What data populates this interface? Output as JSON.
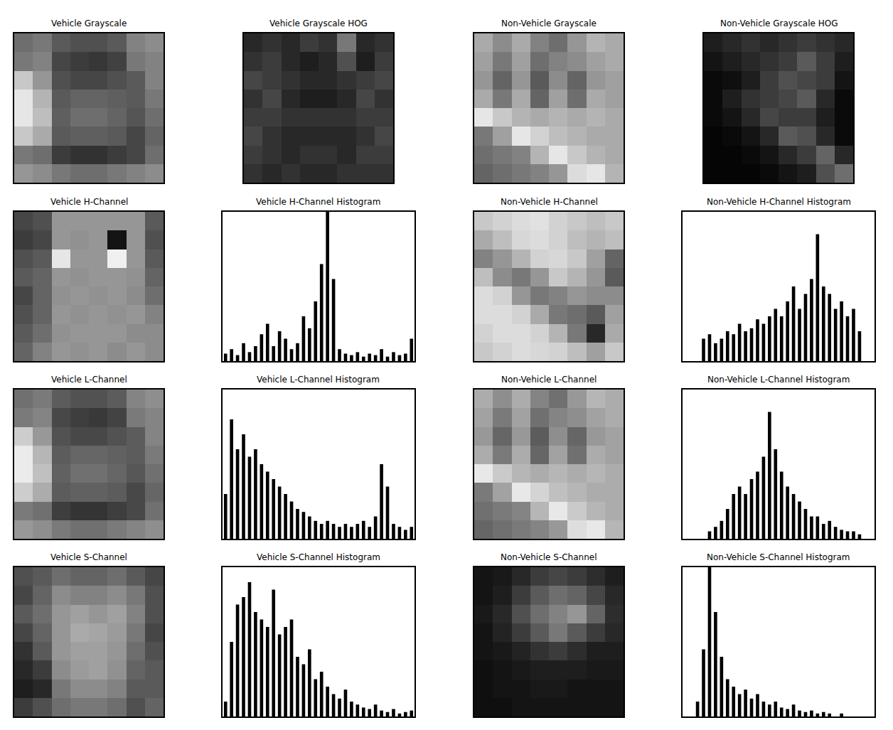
{
  "chart_data": [
    {
      "type": "heatmap",
      "title": "Vehicle Grayscale",
      "zlim": [
        0,
        255
      ],
      "tick_labels": false,
      "z": [
        [
          110,
          120,
          90,
          80,
          80,
          90,
          130,
          140
        ],
        [
          120,
          130,
          70,
          60,
          55,
          65,
          120,
          130
        ],
        [
          200,
          150,
          80,
          70,
          70,
          80,
          90,
          130
        ],
        [
          230,
          180,
          90,
          100,
          100,
          95,
          90,
          120
        ],
        [
          230,
          190,
          95,
          110,
          110,
          100,
          85,
          110
        ],
        [
          200,
          170,
          90,
          95,
          95,
          90,
          70,
          100
        ],
        [
          120,
          110,
          60,
          50,
          50,
          60,
          70,
          110
        ],
        [
          150,
          140,
          120,
          110,
          110,
          120,
          130,
          140
        ]
      ]
    },
    {
      "type": "heatmap",
      "title": "Vehicle Grayscale HOG",
      "zlim": [
        0,
        255
      ],
      "tick_labels": false,
      "z": [
        [
          40,
          50,
          40,
          60,
          50,
          120,
          40,
          50
        ],
        [
          50,
          60,
          40,
          30,
          40,
          80,
          30,
          60
        ],
        [
          70,
          60,
          50,
          40,
          40,
          50,
          60,
          70
        ],
        [
          50,
          70,
          40,
          30,
          30,
          40,
          70,
          50
        ],
        [
          60,
          60,
          50,
          50,
          50,
          50,
          60,
          60
        ],
        [
          70,
          50,
          40,
          40,
          40,
          40,
          50,
          70
        ],
        [
          60,
          50,
          40,
          50,
          50,
          40,
          60,
          60
        ],
        [
          50,
          40,
          50,
          40,
          40,
          50,
          50,
          50
        ]
      ]
    },
    {
      "type": "heatmap",
      "title": "Non-Vehicle Grayscale",
      "zlim": [
        0,
        255
      ],
      "tick_labels": false,
      "z": [
        [
          170,
          140,
          170,
          130,
          110,
          150,
          180,
          170
        ],
        [
          160,
          120,
          160,
          110,
          130,
          140,
          160,
          170
        ],
        [
          150,
          100,
          150,
          90,
          140,
          100,
          150,
          160
        ],
        [
          170,
          120,
          170,
          100,
          160,
          110,
          170,
          160
        ],
        [
          230,
          200,
          180,
          170,
          180,
          170,
          180,
          170
        ],
        [
          120,
          160,
          230,
          210,
          190,
          180,
          170,
          170
        ],
        [
          110,
          120,
          130,
          180,
          230,
          200,
          180,
          170
        ],
        [
          100,
          110,
          120,
          130,
          150,
          220,
          230,
          180
        ]
      ]
    },
    {
      "type": "heatmap",
      "title": "Non-Vehicle Grayscale HOG",
      "zlim": [
        0,
        255
      ],
      "tick_labels": false,
      "z": [
        [
          30,
          40,
          50,
          40,
          50,
          60,
          50,
          40
        ],
        [
          20,
          30,
          40,
          50,
          60,
          90,
          60,
          30
        ],
        [
          10,
          15,
          30,
          60,
          80,
          70,
          60,
          20
        ],
        [
          10,
          30,
          50,
          60,
          70,
          90,
          40,
          10
        ],
        [
          10,
          20,
          40,
          70,
          60,
          60,
          30,
          10
        ],
        [
          5,
          10,
          20,
          40,
          90,
          80,
          40,
          10
        ],
        [
          5,
          5,
          10,
          20,
          40,
          60,
          100,
          40
        ],
        [
          5,
          5,
          5,
          10,
          20,
          30,
          80,
          110
        ]
      ]
    },
    {
      "type": "heatmap",
      "title": "Vehicle H-Channel",
      "zlim": [
        0,
        255
      ],
      "tick_labels": false,
      "z": [
        [
          70,
          80,
          150,
          150,
          150,
          150,
          150,
          90
        ],
        [
          60,
          70,
          150,
          145,
          150,
          20,
          150,
          80
        ],
        [
          80,
          90,
          230,
          150,
          150,
          240,
          150,
          90
        ],
        [
          90,
          100,
          150,
          145,
          150,
          150,
          145,
          100
        ],
        [
          70,
          100,
          145,
          150,
          145,
          150,
          140,
          110
        ],
        [
          80,
          100,
          150,
          145,
          150,
          145,
          150,
          130
        ],
        [
          90,
          110,
          145,
          150,
          150,
          150,
          140,
          140
        ],
        [
          100,
          130,
          150,
          145,
          150,
          140,
          150,
          140
        ]
      ]
    },
    {
      "type": "histogram",
      "title": "Vehicle H-Channel Histogram",
      "color": "#000000",
      "tick_labels": false,
      "xlim": [
        0,
        256
      ],
      "ylim": [
        0,
        100
      ],
      "bins": [
        0,
        8,
        16,
        24,
        32,
        40,
        48,
        56,
        64,
        72,
        80,
        88,
        96,
        104,
        112,
        120,
        128,
        136,
        144,
        152,
        160,
        168,
        176,
        184,
        192,
        200,
        208,
        216,
        224,
        232,
        240,
        248,
        256
      ],
      "values": [
        5,
        8,
        4,
        12,
        6,
        10,
        18,
        25,
        10,
        20,
        15,
        8,
        12,
        30,
        22,
        40,
        65,
        100,
        55,
        8,
        5,
        4,
        6,
        3,
        5,
        4,
        8,
        3,
        6,
        4,
        5,
        15
      ]
    },
    {
      "type": "heatmap",
      "title": "Non-Vehicle H-Channel",
      "zlim": [
        0,
        255
      ],
      "tick_labels": false,
      "z": [
        [
          200,
          210,
          220,
          225,
          210,
          200,
          190,
          200
        ],
        [
          170,
          190,
          215,
          220,
          210,
          190,
          180,
          190
        ],
        [
          130,
          150,
          180,
          210,
          215,
          200,
          160,
          100
        ],
        [
          190,
          140,
          120,
          150,
          200,
          180,
          150,
          90
        ],
        [
          220,
          210,
          150,
          120,
          130,
          150,
          140,
          140
        ],
        [
          220,
          220,
          210,
          170,
          120,
          110,
          90,
          160
        ],
        [
          210,
          220,
          220,
          210,
          180,
          120,
          40,
          170
        ],
        [
          200,
          210,
          220,
          215,
          210,
          190,
          160,
          200
        ]
      ]
    },
    {
      "type": "histogram",
      "title": "Non-Vehicle H-Channel Histogram",
      "color": "#000000",
      "tick_labels": false,
      "xlim": [
        0,
        256
      ],
      "ylim": [
        0,
        100
      ],
      "bins": [
        0,
        8,
        16,
        24,
        32,
        40,
        48,
        56,
        64,
        72,
        80,
        88,
        96,
        104,
        112,
        120,
        128,
        136,
        144,
        152,
        160,
        168,
        176,
        184,
        192,
        200,
        208,
        216,
        224,
        232,
        240,
        248,
        256
      ],
      "values": [
        0,
        0,
        0,
        15,
        18,
        12,
        15,
        20,
        18,
        25,
        20,
        22,
        28,
        25,
        30,
        35,
        30,
        40,
        50,
        35,
        45,
        55,
        85,
        50,
        45,
        35,
        40,
        30,
        35,
        20,
        0,
        0
      ]
    },
    {
      "type": "heatmap",
      "title": "Vehicle L-Channel",
      "zlim": [
        0,
        255
      ],
      "tick_labels": false,
      "z": [
        [
          112,
          122,
          92,
          82,
          82,
          92,
          132,
          142
        ],
        [
          122,
          132,
          72,
          62,
          57,
          67,
          122,
          132
        ],
        [
          205,
          152,
          82,
          72,
          72,
          82,
          92,
          132
        ],
        [
          235,
          182,
          92,
          102,
          102,
          97,
          92,
          122
        ],
        [
          235,
          192,
          97,
          112,
          112,
          102,
          87,
          112
        ],
        [
          205,
          172,
          92,
          97,
          97,
          92,
          72,
          102
        ],
        [
          122,
          112,
          62,
          52,
          52,
          62,
          72,
          112
        ],
        [
          152,
          142,
          122,
          112,
          112,
          122,
          132,
          142
        ]
      ]
    },
    {
      "type": "histogram",
      "title": "Vehicle L-Channel Histogram",
      "color": "#000000",
      "tick_labels": false,
      "xlim": [
        0,
        256
      ],
      "ylim": [
        0,
        100
      ],
      "bins": [
        0,
        8,
        16,
        24,
        32,
        40,
        48,
        56,
        64,
        72,
        80,
        88,
        96,
        104,
        112,
        120,
        128,
        136,
        144,
        152,
        160,
        168,
        176,
        184,
        192,
        200,
        208,
        216,
        224,
        232,
        240,
        248,
        256
      ],
      "values": [
        30,
        80,
        60,
        70,
        55,
        60,
        50,
        45,
        40,
        35,
        30,
        25,
        20,
        18,
        15,
        12,
        10,
        12,
        10,
        8,
        10,
        8,
        10,
        12,
        8,
        15,
        50,
        35,
        10,
        8,
        6,
        8
      ]
    },
    {
      "type": "heatmap",
      "title": "Non-Vehicle L-Channel",
      "zlim": [
        0,
        255
      ],
      "tick_labels": false,
      "z": [
        [
          172,
          142,
          172,
          132,
          112,
          152,
          182,
          172
        ],
        [
          162,
          122,
          162,
          112,
          132,
          142,
          162,
          172
        ],
        [
          152,
          102,
          152,
          92,
          142,
          102,
          152,
          162
        ],
        [
          172,
          122,
          172,
          102,
          162,
          112,
          172,
          162
        ],
        [
          232,
          202,
          182,
          172,
          182,
          172,
          182,
          172
        ],
        [
          122,
          162,
          232,
          212,
          192,
          182,
          172,
          172
        ],
        [
          112,
          122,
          132,
          182,
          232,
          202,
          182,
          172
        ],
        [
          102,
          112,
          122,
          132,
          152,
          222,
          232,
          182
        ]
      ]
    },
    {
      "type": "histogram",
      "title": "Non-Vehicle L-Channel Histogram",
      "color": "#000000",
      "tick_labels": false,
      "xlim": [
        0,
        256
      ],
      "ylim": [
        0,
        100
      ],
      "bins": [
        0,
        8,
        16,
        24,
        32,
        40,
        48,
        56,
        64,
        72,
        80,
        88,
        96,
        104,
        112,
        120,
        128,
        136,
        144,
        152,
        160,
        168,
        176,
        184,
        192,
        200,
        208,
        216,
        224,
        232,
        240,
        248,
        256
      ],
      "values": [
        0,
        0,
        0,
        0,
        5,
        8,
        12,
        20,
        30,
        35,
        30,
        40,
        45,
        55,
        85,
        60,
        45,
        35,
        30,
        25,
        20,
        15,
        15,
        10,
        12,
        8,
        6,
        5,
        5,
        3,
        0,
        0
      ]
    },
    {
      "type": "heatmap",
      "title": "Vehicle S-Channel",
      "zlim": [
        0,
        255
      ],
      "tick_labels": false,
      "z": [
        [
          80,
          90,
          110,
          100,
          100,
          110,
          90,
          70
        ],
        [
          70,
          100,
          140,
          130,
          130,
          140,
          120,
          80
        ],
        [
          90,
          110,
          150,
          160,
          150,
          160,
          130,
          80
        ],
        [
          70,
          100,
          150,
          170,
          165,
          155,
          120,
          70
        ],
        [
          50,
          90,
          150,
          160,
          160,
          150,
          110,
          80
        ],
        [
          40,
          60,
          140,
          155,
          160,
          145,
          100,
          90
        ],
        [
          30,
          40,
          120,
          140,
          140,
          130,
          90,
          90
        ],
        [
          60,
          80,
          110,
          120,
          120,
          110,
          80,
          100
        ]
      ]
    },
    {
      "type": "histogram",
      "title": "Vehicle S-Channel Histogram",
      "color": "#000000",
      "tick_labels": false,
      "xlim": [
        0,
        256
      ],
      "ylim": [
        0,
        100
      ],
      "bins": [
        0,
        8,
        16,
        24,
        32,
        40,
        48,
        56,
        64,
        72,
        80,
        88,
        96,
        104,
        112,
        120,
        128,
        136,
        144,
        152,
        160,
        168,
        176,
        184,
        192,
        200,
        208,
        216,
        224,
        232,
        240,
        248,
        256
      ],
      "values": [
        10,
        50,
        75,
        80,
        90,
        70,
        65,
        60,
        85,
        55,
        60,
        65,
        40,
        35,
        45,
        25,
        30,
        20,
        15,
        12,
        18,
        10,
        8,
        6,
        5,
        8,
        4,
        3,
        5,
        2,
        3,
        4
      ]
    },
    {
      "type": "heatmap",
      "title": "Non-Vehicle S-Channel",
      "zlim": [
        0,
        255
      ],
      "tick_labels": false,
      "z": [
        [
          20,
          25,
          40,
          60,
          70,
          60,
          45,
          30
        ],
        [
          20,
          30,
          60,
          90,
          110,
          100,
          70,
          40
        ],
        [
          25,
          40,
          80,
          110,
          130,
          150,
          100,
          45
        ],
        [
          20,
          35,
          60,
          90,
          120,
          90,
          60,
          40
        ],
        [
          20,
          25,
          35,
          50,
          60,
          45,
          30,
          30
        ],
        [
          15,
          20,
          25,
          30,
          30,
          30,
          25,
          25
        ],
        [
          15,
          20,
          20,
          25,
          25,
          20,
          20,
          20
        ],
        [
          15,
          15,
          20,
          20,
          20,
          20,
          20,
          20
        ]
      ]
    },
    {
      "type": "histogram",
      "title": "Non-Vehicle S-Channel Histogram",
      "color": "#000000",
      "tick_labels": false,
      "xlim": [
        0,
        256
      ],
      "ylim": [
        0,
        100
      ],
      "bins": [
        0,
        8,
        16,
        24,
        32,
        40,
        48,
        56,
        64,
        72,
        80,
        88,
        96,
        104,
        112,
        120,
        128,
        136,
        144,
        152,
        160,
        168,
        176,
        184,
        192,
        200,
        208,
        216,
        224,
        232,
        240,
        248,
        256
      ],
      "values": [
        0,
        0,
        10,
        45,
        100,
        70,
        40,
        25,
        20,
        15,
        18,
        12,
        15,
        10,
        8,
        10,
        6,
        5,
        8,
        4,
        3,
        4,
        2,
        3,
        2,
        0,
        2,
        0,
        0,
        0,
        0,
        0
      ]
    }
  ]
}
